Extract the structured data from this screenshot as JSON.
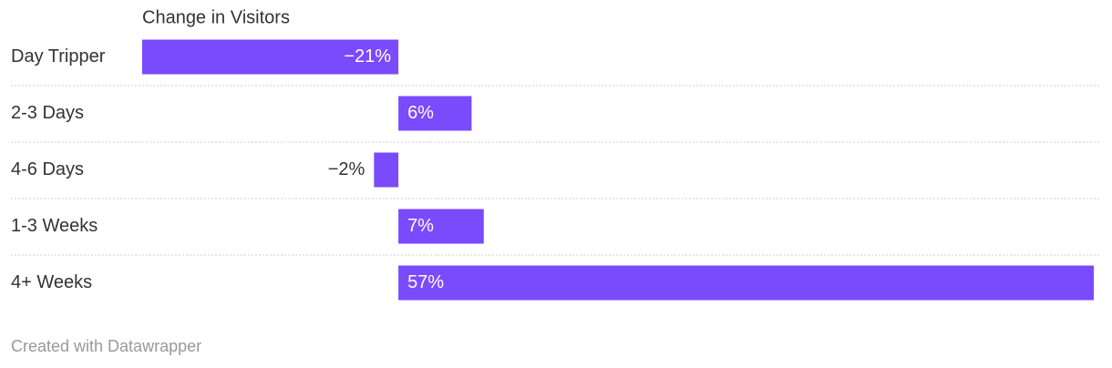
{
  "chart_data": {
    "type": "bar",
    "orientation": "horizontal",
    "column_header": "Change in Visitors",
    "categories": [
      "Day Tripper",
      "2-3 Days",
      "4-6 Days",
      "1-3 Weeks",
      "4+ Weeks"
    ],
    "values": [
      -21,
      6,
      -2,
      7,
      57
    ],
    "value_labels": [
      "−21%",
      "6%",
      "−2%",
      "7%",
      "57%"
    ],
    "color": "#7a4afd",
    "footer": "Created with Datawrapper"
  }
}
